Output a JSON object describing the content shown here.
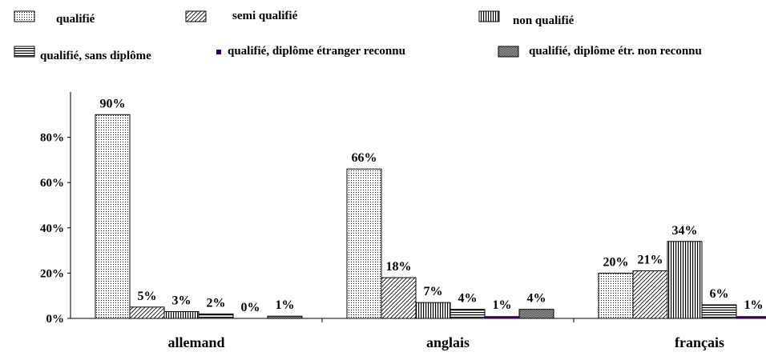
{
  "chart_data": {
    "type": "bar",
    "categories": [
      "allemand",
      "anglais",
      "français"
    ],
    "series": [
      {
        "name": "qualifié",
        "color": "#000000",
        "pattern": "dots",
        "values": [
          90,
          66,
          20
        ],
        "value_labels": [
          "90%",
          "66%",
          "20%"
        ]
      },
      {
        "name": "semi qualifié",
        "color": "#000000",
        "pattern": "diagonal",
        "values": [
          5,
          18,
          21
        ],
        "value_labels": [
          "5%",
          "18%",
          "21%"
        ]
      },
      {
        "name": "non qualifié",
        "color": "#000000",
        "pattern": "vertical",
        "values": [
          3,
          7,
          34
        ],
        "value_labels": [
          "3%",
          "7%",
          "34%"
        ]
      },
      {
        "name": "qualifié, sans diplôme",
        "color": "#000000",
        "pattern": "horizontal",
        "values": [
          2,
          4,
          6
        ],
        "value_labels": [
          "2%",
          "4%",
          "6%"
        ]
      },
      {
        "name": "qualifié, diplôme étranger reconnu",
        "color": "#330066",
        "pattern": "solid",
        "values": [
          0,
          1,
          1
        ],
        "value_labels": [
          "0%",
          "1%",
          "1%"
        ]
      },
      {
        "name": "qualifié, diplôme étr. non reconnu",
        "color": "#666666",
        "pattern": "dense",
        "values": [
          1,
          4,
          null
        ],
        "value_labels": [
          "1%",
          "4%",
          null
        ]
      }
    ],
    "ylim": [
      0,
      100
    ],
    "yticks": [
      {
        "value": 0,
        "label": "0%"
      },
      {
        "value": 20,
        "label": "20%"
      },
      {
        "value": 40,
        "label": "40%"
      },
      {
        "value": 60,
        "label": "60%"
      },
      {
        "value": 80,
        "label": "80%"
      }
    ],
    "grid": false,
    "legend": "top"
  }
}
